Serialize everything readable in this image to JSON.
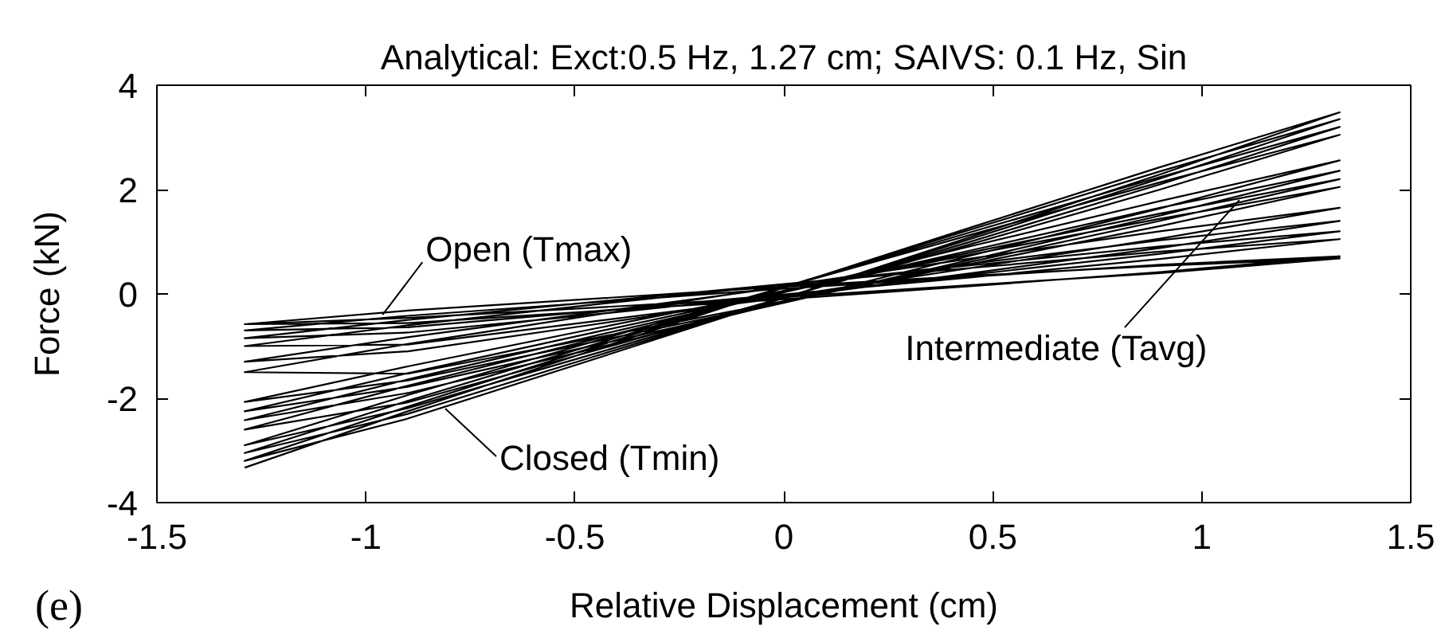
{
  "chart_data": {
    "type": "line",
    "title": "Analytical: Exct:0.5 Hz, 1.27 cm; SAIVS: 0.1 Hz, Sin",
    "xlabel": "Relative Displacement (cm)",
    "ylabel": "Force (kN)",
    "xlim": [
      -1.5,
      1.5
    ],
    "xticks": [
      -1.5,
      -1,
      -0.5,
      0,
      0.5,
      1,
      1.5
    ],
    "ylim": [
      -4,
      4
    ],
    "yticks": [
      -4,
      -2,
      0,
      2,
      4
    ],
    "grid": false,
    "x": [
      -1.29,
      -0.9,
      -0.45,
      0,
      0.45,
      0.9,
      1.33,
      0.9,
      0.45,
      0,
      -0.45,
      -0.9,
      -1.29,
      -0.9,
      -0.45,
      0,
      0.45,
      0.9,
      1.33,
      0.9,
      0.45,
      0,
      -0.45,
      -0.9,
      -1.29,
      -0.9,
      -0.45,
      0,
      0.45,
      0.9,
      1.33,
      0.9,
      0.45,
      0,
      -0.45,
      -0.9,
      -1.29,
      -0.9,
      -0.45,
      0,
      0.45,
      0.9,
      1.33,
      0.9,
      0.45,
      0,
      -0.45,
      -0.9,
      -1.29,
      -0.9,
      -0.45,
      0,
      0.45,
      0.9,
      1.33,
      0.9,
      0.45,
      0,
      -0.45,
      -0.9,
      -1.29,
      -0.9,
      -0.45,
      0,
      0.45,
      0.9,
      1.33,
      0.9,
      0.45,
      0,
      -0.45,
      -0.9,
      -1.29,
      -0.9,
      -0.45,
      0,
      0.45,
      0.9,
      1.33,
      0.9,
      0.45,
      0,
      -0.45,
      -0.9,
      -1.29,
      -0.9,
      -0.45,
      0,
      0.45,
      0.9,
      1.33,
      0.9,
      0.45,
      0,
      -0.45,
      -0.9,
      -1.29,
      -0.9,
      -0.45,
      0,
      0.45,
      0.9,
      1.33,
      0.9,
      0.45,
      0,
      -0.45,
      -0.9,
      -1.29,
      -0.9,
      -0.45,
      0,
      0.45,
      0.9,
      1.33,
      0.9,
      0.45,
      0,
      -0.45,
      -0.9,
      -1.29,
      -0.9,
      -0.45,
      0,
      0.45,
      0.9,
      1.33,
      0.9,
      0.45,
      0,
      -0.45,
      -0.9,
      -1.29,
      -0.9,
      -0.45,
      0,
      0.45,
      0.9,
      1.33,
      0.9,
      0.45,
      0,
      -0.45,
      -0.9,
      -1.29,
      -0.9,
      -0.45,
      0,
      0.45,
      0.9,
      1.33,
      0.9,
      0.45,
      0,
      -0.45,
      -0.9,
      -1.29,
      -0.9,
      -0.45,
      0,
      0.45,
      0.9,
      1.33,
      0.9,
      0.45,
      0,
      -0.45,
      -0.9,
      -1.29
    ],
    "series": [
      {
        "color": "#000000",
        "values": [
          -3.33,
          -2.25,
          -1.06,
          0.12,
          1.28,
          2.43,
          3.48,
          2.29,
          1.1,
          -0.08,
          -1.24,
          -2.39,
          -3.2,
          -2.16,
          -1.01,
          0.13,
          1.24,
          2.35,
          3.35,
          2.21,
          1.06,
          -0.08,
          -1.19,
          -2.3,
          -3.05,
          -2.05,
          -0.96,
          0.13,
          1.19,
          2.24,
          3.2,
          2.1,
          1.01,
          -0.07,
          -1.14,
          -2.19,
          -2.9,
          -1.94,
          -0.9,
          0.13,
          1.14,
          2.14,
          3.05,
          2.0,
          0.96,
          -0.07,
          -1.08,
          -2.08,
          -2.6,
          -1.76,
          -0.86,
          0.04,
          0.92,
          1.78,
          2.56,
          1.64,
          0.74,
          -0.16,
          -1.04,
          -1.9,
          -2.42,
          -1.64,
          -0.8,
          0.03,
          0.84,
          1.65,
          2.36,
          1.5,
          0.66,
          -0.17,
          -0.98,
          -1.78,
          -2.25,
          -1.52,
          -0.73,
          0.04,
          0.8,
          1.54,
          2.2,
          1.4,
          0.62,
          -0.16,
          -0.91,
          -1.66,
          -2.07,
          -1.39,
          -0.66,
          0.06,
          0.76,
          1.44,
          2.05,
          1.3,
          0.58,
          -0.14,
          -0.84,
          -1.53,
          -1.5,
          -0.96,
          -0.4,
          0.15,
          0.68,
          1.2,
          1.65,
          1.06,
          0.5,
          -0.05,
          -0.58,
          -1.1,
          -1.3,
          -0.83,
          -0.35,
          0.13,
          0.58,
          1.03,
          1.4,
          0.88,
          0.4,
          -0.07,
          -0.52,
          -0.97,
          -1.0,
          -0.6,
          -0.2,
          0.18,
          0.55,
          0.91,
          1.2,
          0.77,
          0.37,
          -0.02,
          -0.39,
          -0.74,
          -0.85,
          -0.5,
          -0.15,
          0.19,
          0.5,
          0.81,
          1.05,
          0.67,
          0.32,
          -0.01,
          -0.33,
          -0.64,
          -0.7,
          -0.42,
          -0.16,
          0.1,
          0.33,
          0.56,
          0.72,
          0.42,
          0.15,
          -0.1,
          -0.33,
          -0.56,
          -0.58,
          -0.32,
          -0.09,
          0.14,
          0.35,
          0.54,
          0.68,
          0.4,
          0.17,
          -0.06,
          -0.26,
          -0.46,
          -0.58
        ]
      }
    ],
    "annotations": [
      {
        "text": "Open (Tmax)",
        "x": -0.96,
        "y": -0.4
      },
      {
        "text": "Closed (Tmin)",
        "x": -0.81,
        "y": -2.2
      },
      {
        "text": "Intermediate (Tavg)",
        "x": 1.09,
        "y": 1.8
      },
      "(e)"
    ]
  }
}
